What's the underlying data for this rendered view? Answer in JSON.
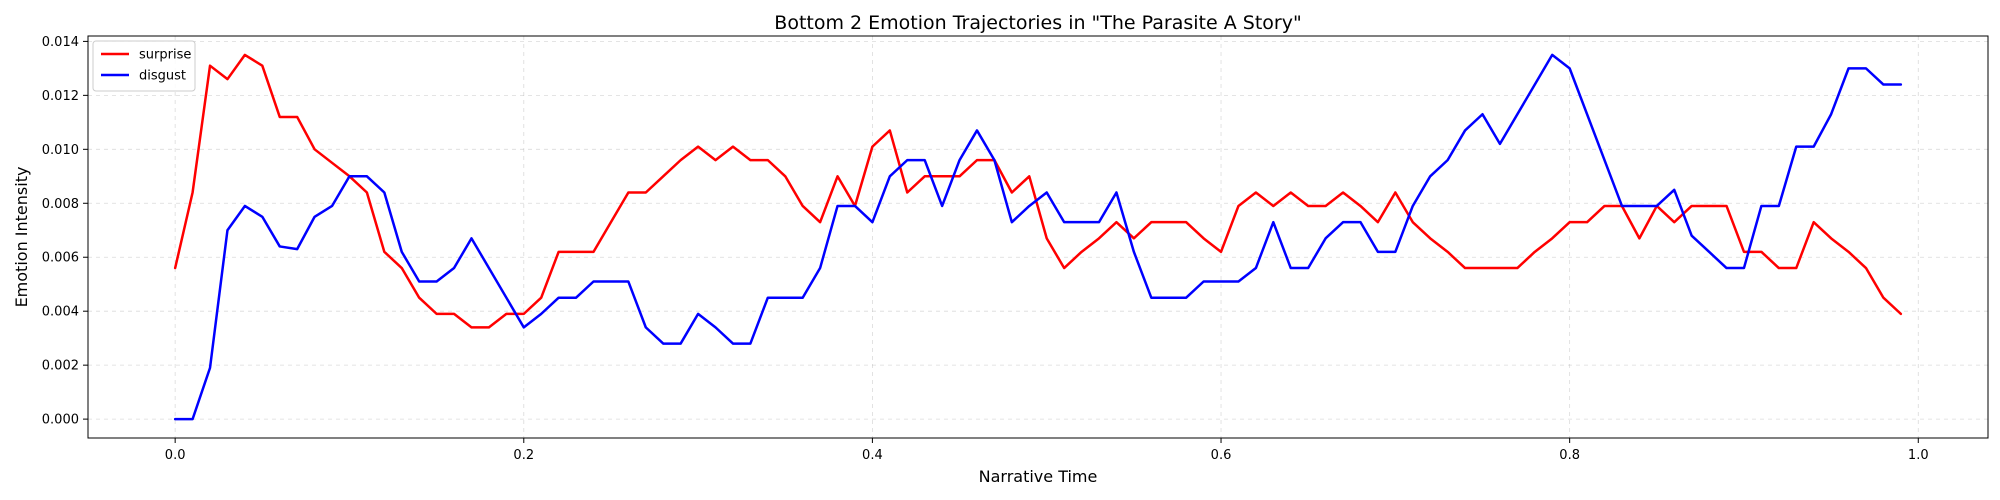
{
  "chart_data": {
    "type": "line",
    "title": "Bottom 2 Emotion Trajectories in \"The Parasite A Story\"",
    "xlabel": "Narrative Time",
    "ylabel": "Emotion Intensity",
    "xlim": [
      -0.05,
      1.04
    ],
    "ylim": [
      -0.0007,
      0.0142
    ],
    "xticks": [
      0.0,
      0.2,
      0.4,
      0.6,
      0.8,
      1.0
    ],
    "xtick_labels": [
      "0.0",
      "0.2",
      "0.4",
      "0.6",
      "0.8",
      "1.0"
    ],
    "yticks": [
      0.0,
      0.002,
      0.004,
      0.006,
      0.008,
      0.01,
      0.012,
      0.014
    ],
    "ytick_labels": [
      "0.000",
      "0.002",
      "0.004",
      "0.006",
      "0.008",
      "0.010",
      "0.012",
      "0.014"
    ],
    "grid": true,
    "legend_position": "top-left",
    "series": [
      {
        "name": "surprise",
        "color": "#ff0000",
        "x": [
          0.0,
          0.01,
          0.02,
          0.03,
          0.04,
          0.05,
          0.06,
          0.07,
          0.08,
          0.09,
          0.1,
          0.11,
          0.12,
          0.13,
          0.14,
          0.15,
          0.16,
          0.17,
          0.18,
          0.19,
          0.2,
          0.21,
          0.22,
          0.23,
          0.24,
          0.25,
          0.26,
          0.27,
          0.28,
          0.29,
          0.3,
          0.31,
          0.32,
          0.33,
          0.34,
          0.35,
          0.36,
          0.37,
          0.38,
          0.39,
          0.4,
          0.41,
          0.42,
          0.43,
          0.44,
          0.45,
          0.46,
          0.47,
          0.48,
          0.49,
          0.5,
          0.51,
          0.52,
          0.53,
          0.54,
          0.55,
          0.56,
          0.57,
          0.58,
          0.59,
          0.6,
          0.61,
          0.62,
          0.63,
          0.64,
          0.65,
          0.66,
          0.67,
          0.68,
          0.69,
          0.7,
          0.71,
          0.72,
          0.73,
          0.74,
          0.75,
          0.76,
          0.77,
          0.78,
          0.79,
          0.8,
          0.81,
          0.82,
          0.83,
          0.84,
          0.85,
          0.86,
          0.87,
          0.88,
          0.89,
          0.9,
          0.91,
          0.92,
          0.93,
          0.94,
          0.95,
          0.96,
          0.97,
          0.98,
          0.99
        ],
        "y": [
          0.0056,
          0.0084,
          0.0131,
          0.0126,
          0.0135,
          0.0131,
          0.0112,
          0.0112,
          0.01,
          0.0095,
          0.009,
          0.0084,
          0.0062,
          0.0056,
          0.0045,
          0.0039,
          0.0039,
          0.0034,
          0.0034,
          0.0039,
          0.0039,
          0.0045,
          0.0062,
          0.0062,
          0.0062,
          0.0073,
          0.0084,
          0.0084,
          0.009,
          0.0096,
          0.0101,
          0.0096,
          0.0101,
          0.0096,
          0.0096,
          0.009,
          0.0079,
          0.0073,
          0.009,
          0.0079,
          0.0101,
          0.0107,
          0.0084,
          0.009,
          0.009,
          0.009,
          0.0096,
          0.0096,
          0.0084,
          0.009,
          0.0067,
          0.0056,
          0.0062,
          0.0067,
          0.0073,
          0.0067,
          0.0073,
          0.0073,
          0.0073,
          0.0067,
          0.0062,
          0.0079,
          0.0084,
          0.0079,
          0.0084,
          0.0079,
          0.0079,
          0.0084,
          0.0079,
          0.0073,
          0.0084,
          0.0073,
          0.0067,
          0.0062,
          0.0056,
          0.0056,
          0.0056,
          0.0056,
          0.0062,
          0.0067,
          0.0073,
          0.0073,
          0.0079,
          0.0079,
          0.0067,
          0.0079,
          0.0073,
          0.0079,
          0.0079,
          0.0079,
          0.0062,
          0.0062,
          0.0056,
          0.0056,
          0.0073,
          0.0067,
          0.0062,
          0.0056,
          0.0045,
          0.0039
        ]
      },
      {
        "name": "disgust",
        "color": "#0000ff",
        "x": [
          0.0,
          0.01,
          0.02,
          0.03,
          0.04,
          0.05,
          0.06,
          0.07,
          0.08,
          0.09,
          0.1,
          0.11,
          0.12,
          0.13,
          0.14,
          0.15,
          0.16,
          0.17,
          0.2,
          0.21,
          0.22,
          0.23,
          0.24,
          0.25,
          0.26,
          0.27,
          0.28,
          0.29,
          0.3,
          0.31,
          0.32,
          0.33,
          0.34,
          0.35,
          0.36,
          0.37,
          0.38,
          0.39,
          0.4,
          0.41,
          0.42,
          0.43,
          0.44,
          0.45,
          0.46,
          0.47,
          0.48,
          0.49,
          0.5,
          0.51,
          0.52,
          0.53,
          0.54,
          0.55,
          0.56,
          0.57,
          0.58,
          0.59,
          0.6,
          0.61,
          0.62,
          0.63,
          0.64,
          0.65,
          0.66,
          0.67,
          0.68,
          0.69,
          0.7,
          0.71,
          0.72,
          0.73,
          0.74,
          0.75,
          0.76,
          0.79,
          0.8,
          0.83,
          0.84,
          0.85,
          0.86,
          0.87,
          0.88,
          0.89,
          0.9,
          0.91,
          0.92,
          0.93,
          0.94,
          0.95,
          0.96,
          0.97,
          0.98,
          0.99
        ],
        "y": [
          0.0,
          0.0,
          0.0019,
          0.007,
          0.0079,
          0.0075,
          0.0064,
          0.0063,
          0.0075,
          0.0079,
          0.009,
          0.009,
          0.0084,
          0.0062,
          0.0051,
          0.0051,
          0.0056,
          0.0067,
          0.0034,
          0.0039,
          0.0045,
          0.0045,
          0.0051,
          0.0051,
          0.0051,
          0.0034,
          0.0028,
          0.0028,
          0.0039,
          0.0034,
          0.0028,
          0.0028,
          0.0045,
          0.0045,
          0.0045,
          0.0056,
          0.0079,
          0.0079,
          0.0073,
          0.009,
          0.0096,
          0.0096,
          0.0079,
          0.0096,
          0.0107,
          0.0096,
          0.0073,
          0.0079,
          0.0084,
          0.0073,
          0.0073,
          0.0073,
          0.0084,
          0.0062,
          0.0045,
          0.0045,
          0.0045,
          0.0051,
          0.0051,
          0.0051,
          0.0056,
          0.0073,
          0.0056,
          0.0056,
          0.0067,
          0.0073,
          0.0073,
          0.0062,
          0.0062,
          0.0079,
          0.009,
          0.0096,
          0.0107,
          0.0113,
          0.0102,
          0.0135,
          0.013,
          0.0079,
          0.0079,
          0.0079,
          0.0085,
          0.0068,
          0.0062,
          0.0056,
          0.0056,
          0.0079,
          0.0079,
          0.0101,
          0.0101,
          0.0113,
          0.013,
          0.013,
          0.0124,
          0.0124
        ]
      }
    ]
  }
}
